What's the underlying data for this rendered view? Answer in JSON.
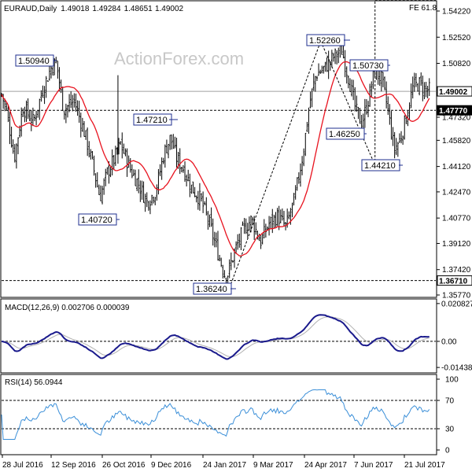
{
  "chart_data": {
    "type": "candlestick",
    "symbol": "EURAUD",
    "timeframe": "Daily",
    "ohlc": {
      "open": "1.49018",
      "high": "1.49284",
      "low": "1.48651",
      "close": "1.49002"
    },
    "watermark": "ActionForex.com",
    "fib_label": "FE 61.8",
    "price_axis": {
      "ticks": [
        "1.54220",
        "1.52520",
        "1.50820",
        "1.49120",
        "1.47320",
        "1.45820",
        "1.44120",
        "1.42470",
        "1.40770",
        "1.39120",
        "1.37420",
        "1.35770"
      ],
      "current_price_label": "1.49002",
      "support_label": "1.47770",
      "bottom_support_label": "1.36710"
    },
    "date_axis": [
      "28 Jul 2016",
      "12 Sep 2016",
      "26 Oct 2016",
      "9 Dec 2016",
      "24 Jan 2017",
      "9 Mar 2017",
      "24 Apr 2017",
      "7 Jun 2017",
      "21 Jul 2017"
    ],
    "annotations": [
      "1.50940",
      "1.47210",
      "1.40720",
      "1.36240",
      "1.52260",
      "1.50730",
      "1.46250",
      "1.44210"
    ],
    "levels": {
      "current": 1.49002,
      "support": 1.4777,
      "bottom_support": 1.3671,
      "fe": 1.5494
    },
    "zigzag": [
      [
        0.525,
        1.3624
      ],
      [
        0.735,
        1.5226
      ],
      [
        0.86,
        1.4421
      ],
      [
        0.86,
        1.5494
      ]
    ],
    "macd": {
      "title": "MACD(12,26,9) 0.002706 0.000039",
      "ticks": [
        "0.020827",
        "0.00",
        "-0.014386"
      ],
      "range": [
        -0.0165,
        0.0225
      ]
    },
    "rsi": {
      "title": "RSI(14) 56.0944",
      "ticks": [
        "100",
        "70",
        "30",
        "0"
      ],
      "levels": [
        70,
        30
      ]
    }
  },
  "colors": {
    "candle": "#000000",
    "ma": "#e8121e",
    "macd_line": "#1a1a8c",
    "macd_signal": "#b0b0b0",
    "rsi_line": "#3b8fd8",
    "dashed": "#888888",
    "zigzag": "#000000"
  }
}
